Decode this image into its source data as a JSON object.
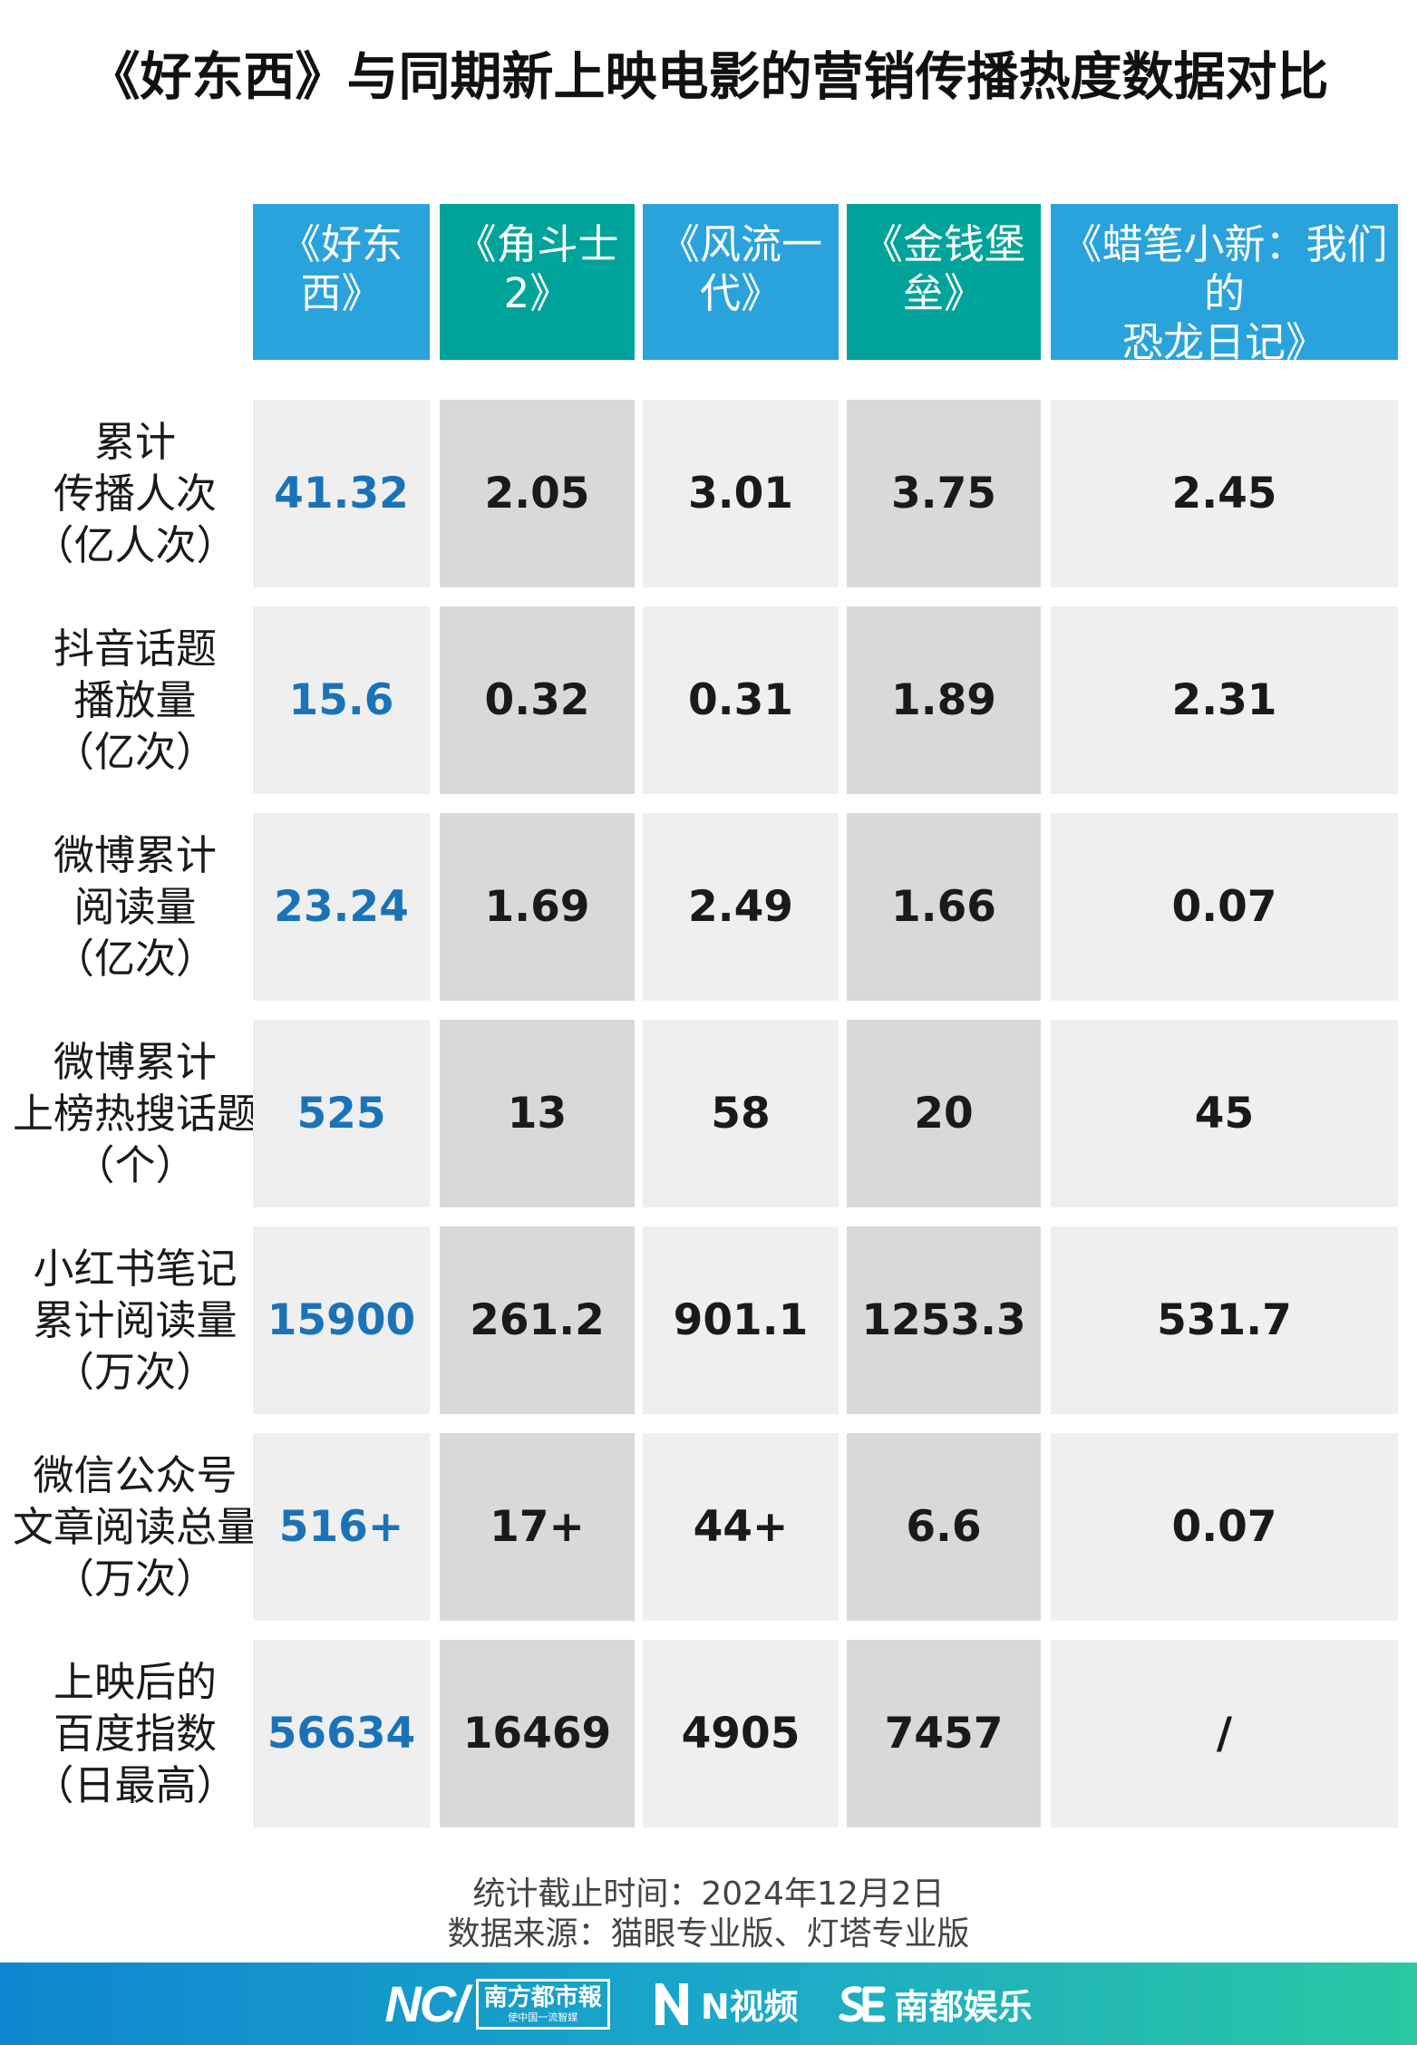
{
  "title": "《好东西》与同期新上映电影的营销传播热度数据对比",
  "chart_data": {
    "type": "table",
    "title": "《好东西》与同期新上映电影的营销传播热度数据对比",
    "columns": [
      "《好东西》",
      "《角斗士2》",
      "《风流一代》",
      "《金钱堡垒》",
      "《蜡笔小新：我们的\n恐龙日记》"
    ],
    "rows": [
      {
        "label": "累计\n传播人次\n（亿人次）",
        "values": [
          "41.32",
          "2.05",
          "3.01",
          "3.75",
          "2.45"
        ]
      },
      {
        "label": "抖音话题\n播放量\n（亿次）",
        "values": [
          "15.6",
          "0.32",
          "0.31",
          "1.89",
          "2.31"
        ]
      },
      {
        "label": "微博累计\n阅读量\n（亿次）",
        "values": [
          "23.24",
          "1.69",
          "2.49",
          "1.66",
          "0.07"
        ]
      },
      {
        "label": "微博累计\n上榜热搜话题\n（个）",
        "values": [
          "525",
          "13",
          "58",
          "20",
          "45"
        ]
      },
      {
        "label": "小红书笔记\n累计阅读量\n（万次）",
        "values": [
          "15900",
          "261.2",
          "901.1",
          "1253.3",
          "531.7"
        ]
      },
      {
        "label": "微信公众号\n文章阅读总量\n（万次）",
        "values": [
          "516+",
          "17+",
          "44+",
          "6.6",
          "0.07"
        ]
      },
      {
        "label": "上映后的\n百度指数\n（日最高）",
        "values": [
          "56634",
          "16469",
          "4905",
          "7457",
          "/"
        ]
      }
    ],
    "header_colors": [
      "#2aa3dd",
      "#00a39a",
      "#2aa3dd",
      "#00a39a",
      "#2aa3dd"
    ],
    "highlight_color": "#1a73b8"
  },
  "footer": {
    "date_note": "统计截止时间：2024年12月2日",
    "source_note": "数据来源：猫眼专业版、灯塔专业版"
  },
  "brands": {
    "nc_logo": "NC/",
    "nandu_main": "南方都市報",
    "nandu_sub": "使中国一流智媒",
    "nvideo": "N视频",
    "nandu_ent": "南都娱乐"
  }
}
